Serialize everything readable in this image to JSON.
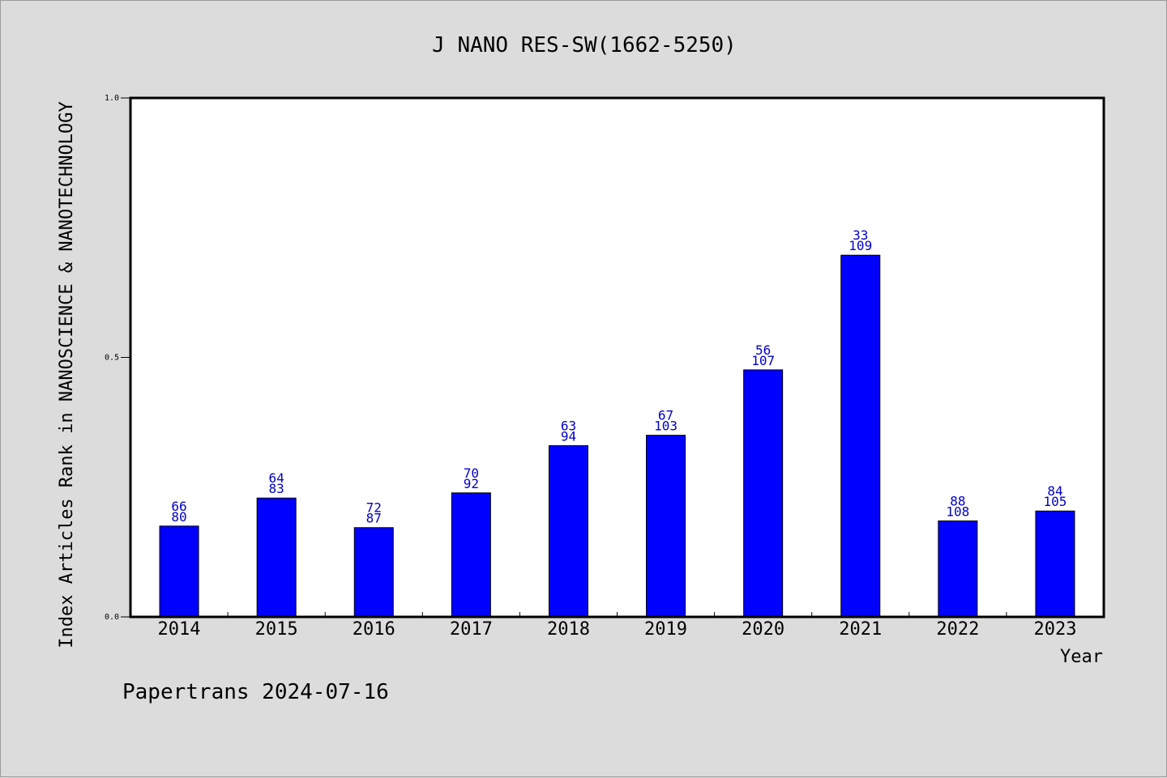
{
  "chart_data": {
    "type": "bar",
    "title": "J NANO RES-SW(1662-5250)",
    "xlabel": "Year",
    "ylabel": "Index Articles Rank in NANOSCIENCE & NANOTECHNOLOGY",
    "ylim": [
      0,
      1
    ],
    "yticks": [
      "0.0",
      "0.5",
      "1.0"
    ],
    "categories": [
      "2014",
      "2015",
      "2016",
      "2017",
      "2018",
      "2019",
      "2020",
      "2021",
      "2022",
      "2023"
    ],
    "values": [
      0.175,
      0.229,
      0.172,
      0.239,
      0.33,
      0.35,
      0.476,
      0.697,
      0.185,
      0.204
    ],
    "label_top": [
      "66",
      "64",
      "72",
      "70",
      "63",
      "67",
      "56",
      "33",
      "88",
      "84"
    ],
    "label_bottom": [
      "80",
      "83",
      "87",
      "92",
      "94",
      "103",
      "107",
      "109",
      "108",
      "105"
    ],
    "bar_color": "#0000ff",
    "label_color": "#0000c8",
    "grid": false,
    "legend": "none"
  },
  "footer": "Papertrans 2024-07-16"
}
